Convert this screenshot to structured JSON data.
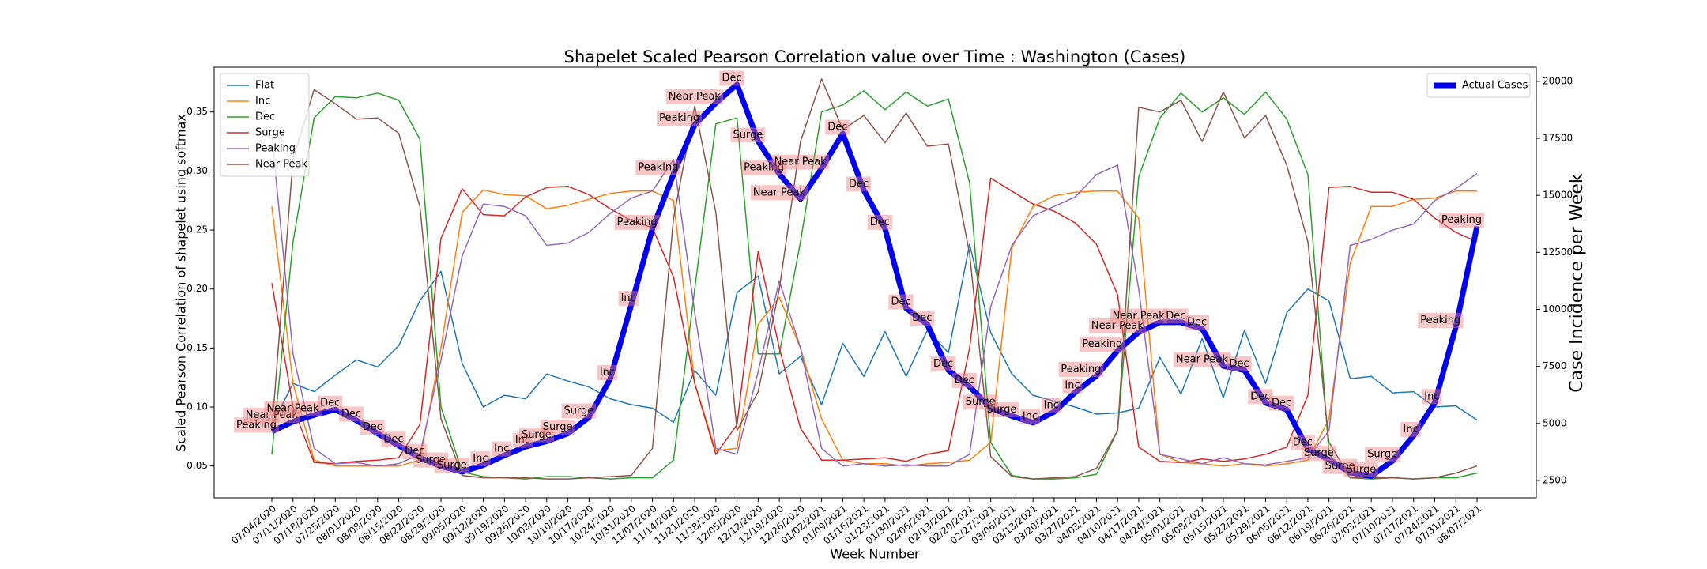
{
  "chart_data": {
    "type": "line",
    "title": "Shapelet Scaled Pearson Correlation value over Time : Washington (Cases)",
    "x_label": "Week Number",
    "y_label": "Scaled Pearson Correlation of shapelet using softmax",
    "y2_label": "Case Incidence per Week",
    "categories": [
      "07/04/2020",
      "07/11/2020",
      "07/18/2020",
      "07/25/2020",
      "08/01/2020",
      "08/08/2020",
      "08/15/2020",
      "08/22/2020",
      "08/29/2020",
      "09/05/2020",
      "09/12/2020",
      "09/19/2020",
      "09/26/2020",
      "10/03/2020",
      "10/10/2020",
      "10/17/2020",
      "10/24/2020",
      "10/31/2020",
      "11/07/2020",
      "11/14/2020",
      "11/21/2020",
      "11/28/2020",
      "12/05/2020",
      "12/12/2020",
      "12/19/2020",
      "12/26/2020",
      "01/02/2021",
      "01/09/2021",
      "01/16/2021",
      "01/23/2021",
      "01/30/2021",
      "02/06/2021",
      "02/13/2021",
      "02/20/2021",
      "02/27/2021",
      "03/06/2021",
      "03/13/2021",
      "03/20/2021",
      "03/27/2021",
      "04/03/2021",
      "04/10/2021",
      "04/17/2021",
      "04/24/2021",
      "05/01/2021",
      "05/08/2021",
      "05/15/2021",
      "05/22/2021",
      "05/29/2021",
      "06/05/2021",
      "06/12/2021",
      "06/19/2021",
      "06/26/2021",
      "07/03/2021",
      "07/10/2021",
      "07/17/2021",
      "07/24/2021",
      "07/31/2021",
      "08/07/2021"
    ],
    "series": [
      {
        "name": "Flat",
        "color": "#1f77b4",
        "width": 1.5,
        "values": [
          0.085,
          0.12,
          0.113,
          0.127,
          0.14,
          0.134,
          0.152,
          0.19,
          0.215,
          0.137,
          0.1,
          0.11,
          0.107,
          0.128,
          0.122,
          0.117,
          0.107,
          0.102,
          0.099,
          0.087,
          0.131,
          0.11,
          0.197,
          0.211,
          0.128,
          0.143,
          0.102,
          0.154,
          0.126,
          0.164,
          0.126,
          0.165,
          0.146,
          0.238,
          0.163,
          0.128,
          0.11,
          0.105,
          0.1,
          0.094,
          0.095,
          0.099,
          0.142,
          0.111,
          0.158,
          0.108,
          0.165,
          0.12,
          0.18,
          0.2,
          0.19,
          0.124,
          0.126,
          0.112,
          0.113,
          0.1,
          0.101,
          0.089
        ]
      },
      {
        "name": "Inc",
        "color": "#ff7f0e",
        "width": 1.5,
        "values": [
          0.27,
          0.12,
          0.055,
          0.05,
          0.05,
          0.05,
          0.05,
          0.055,
          0.15,
          0.265,
          0.284,
          0.28,
          0.279,
          0.268,
          0.271,
          0.276,
          0.281,
          0.283,
          0.283,
          0.275,
          0.12,
          0.063,
          0.065,
          0.17,
          0.193,
          0.15,
          0.09,
          0.055,
          0.052,
          0.052,
          0.05,
          0.052,
          0.053,
          0.055,
          0.07,
          0.235,
          0.27,
          0.279,
          0.282,
          0.283,
          0.283,
          0.26,
          0.06,
          0.053,
          0.052,
          0.05,
          0.052,
          0.05,
          0.052,
          0.055,
          0.09,
          0.222,
          0.27,
          0.27,
          0.276,
          0.277,
          0.283,
          0.283
        ]
      },
      {
        "name": "Dec",
        "color": "#2ca02c",
        "width": 1.5,
        "values": [
          0.06,
          0.24,
          0.345,
          0.363,
          0.362,
          0.366,
          0.36,
          0.327,
          0.1,
          0.045,
          0.041,
          0.04,
          0.039,
          0.041,
          0.041,
          0.04,
          0.039,
          0.04,
          0.04,
          0.055,
          0.2,
          0.34,
          0.345,
          0.145,
          0.145,
          0.24,
          0.35,
          0.356,
          0.368,
          0.352,
          0.367,
          0.355,
          0.361,
          0.29,
          0.07,
          0.042,
          0.039,
          0.039,
          0.04,
          0.043,
          0.08,
          0.295,
          0.345,
          0.366,
          0.35,
          0.362,
          0.348,
          0.367,
          0.344,
          0.297,
          0.06,
          0.04,
          0.039,
          0.04,
          0.039,
          0.04,
          0.04,
          0.044
        ]
      },
      {
        "name": "Surge",
        "color": "#d62728",
        "width": 1.5,
        "values": [
          0.205,
          0.1,
          0.053,
          0.052,
          0.054,
          0.055,
          0.057,
          0.085,
          0.243,
          0.285,
          0.263,
          0.262,
          0.278,
          0.286,
          0.287,
          0.28,
          0.268,
          0.258,
          0.252,
          0.21,
          0.12,
          0.06,
          0.085,
          0.232,
          0.15,
          0.082,
          0.055,
          0.055,
          0.056,
          0.057,
          0.054,
          0.06,
          0.063,
          0.15,
          0.294,
          0.283,
          0.272,
          0.266,
          0.256,
          0.238,
          0.195,
          0.066,
          0.054,
          0.053,
          0.056,
          0.054,
          0.056,
          0.06,
          0.066,
          0.11,
          0.286,
          0.287,
          0.282,
          0.282,
          0.276,
          0.26,
          0.248,
          0.24
        ]
      },
      {
        "name": "Peaking",
        "color": "#9467bd",
        "width": 1.5,
        "values": [
          0.33,
          0.145,
          0.065,
          0.052,
          0.053,
          0.05,
          0.052,
          0.06,
          0.14,
          0.228,
          0.272,
          0.27,
          0.262,
          0.237,
          0.239,
          0.248,
          0.264,
          0.277,
          0.283,
          0.31,
          0.18,
          0.065,
          0.06,
          0.13,
          0.207,
          0.15,
          0.065,
          0.05,
          0.052,
          0.05,
          0.051,
          0.05,
          0.05,
          0.06,
          0.185,
          0.237,
          0.262,
          0.27,
          0.278,
          0.297,
          0.305,
          0.2,
          0.06,
          0.056,
          0.052,
          0.057,
          0.052,
          0.051,
          0.054,
          0.057,
          0.08,
          0.237,
          0.242,
          0.25,
          0.255,
          0.275,
          0.285,
          0.298
        ]
      },
      {
        "name": "Near Peak",
        "color": "#8c564b",
        "width": 1.5,
        "values": [
          0.08,
          0.31,
          0.369,
          0.357,
          0.344,
          0.345,
          0.332,
          0.27,
          0.09,
          0.042,
          0.04,
          0.04,
          0.04,
          0.039,
          0.039,
          0.04,
          0.041,
          0.042,
          0.065,
          0.26,
          0.355,
          0.265,
          0.08,
          0.113,
          0.2,
          0.325,
          0.378,
          0.335,
          0.347,
          0.324,
          0.349,
          0.321,
          0.323,
          0.23,
          0.058,
          0.041,
          0.039,
          0.04,
          0.041,
          0.048,
          0.08,
          0.354,
          0.35,
          0.36,
          0.325,
          0.367,
          0.328,
          0.347,
          0.305,
          0.24,
          0.07,
          0.04,
          0.04,
          0.04,
          0.039,
          0.04,
          0.044,
          0.05
        ]
      },
      {
        "name": "Actual Cases",
        "color": "#0000ee",
        "width": 7,
        "axis": "y2",
        "values": [
          4650,
          5080,
          5370,
          5610,
          5130,
          4560,
          4030,
          3500,
          3120,
          2880,
          3170,
          3600,
          3980,
          4220,
          4560,
          5270,
          6950,
          10200,
          13540,
          15940,
          18100,
          19050,
          19860,
          17370,
          15940,
          14840,
          16180,
          17710,
          15220,
          13540,
          10050,
          9340,
          7330,
          6610,
          5660,
          5320,
          5030,
          5510,
          6370,
          7090,
          8190,
          9000,
          9430,
          9430,
          9150,
          7520,
          7330,
          5900,
          5610,
          3890,
          3410,
          2840,
          2690,
          3360,
          4460,
          5900,
          9240,
          13640
        ],
        "point_labels": [
          "Peaking",
          "Near Peak",
          "Near Peak",
          "Dec",
          "Dec",
          "Dec",
          "Dec",
          "Dec",
          "Surge",
          "Surge",
          "Inc",
          "Inc",
          "Inc",
          "Surge",
          "Surge",
          "Surge",
          "Inc",
          "Inc",
          "Peaking",
          "Peaking",
          "Peaking",
          "Near Peak",
          "Dec",
          "Surge",
          "Peaking",
          "Near Peak",
          "Near Peak",
          "Dec",
          "Dec",
          "Dec",
          "Dec",
          "Dec",
          "Dec",
          "Dec",
          "Surge",
          "Surge",
          "Inc",
          "Inc",
          "Inc",
          "Peaking",
          "Peaking",
          "Near Peak",
          "Near Peak",
          "Dec",
          "Dec",
          "Near Peak",
          "Dec",
          "Dec",
          "Dec",
          "Dec",
          "Surge",
          "Surge",
          "Surge",
          "Surge",
          "Inc",
          "Inc",
          "Peaking",
          "Peaking"
        ]
      }
    ],
    "ylim": [
      0.023,
      0.388
    ],
    "yticks": [
      0.05,
      {
        "value": 0.1,
        "label": "0.10"
      },
      0.15,
      {
        "value": 0.2,
        "label": "0.20"
      },
      0.25,
      {
        "value": 0.3,
        "label": "0.30"
      },
      0.35
    ],
    "y2lim": [
      1735,
      20620
    ],
    "y2ticks": [
      2500,
      5000,
      7500,
      10000,
      12500,
      15000,
      17500,
      20000
    ],
    "legend": "upper left",
    "legend2": "upper right",
    "grid": false
  }
}
